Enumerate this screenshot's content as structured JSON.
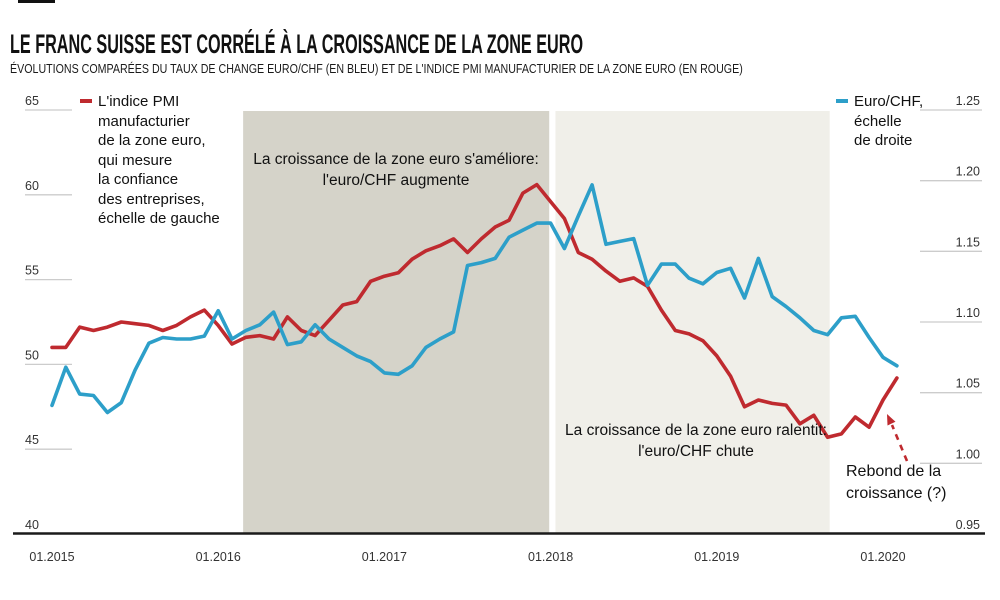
{
  "header": {
    "title": "LE FRANC SUISSE EST CORRÉLÉ À LA CROISSANCE DE LA ZONE EURO",
    "subtitle": "ÉVOLUTIONS COMPARÉES DU TAUX DE CHANGE EURO/CHF (EN BLEU) ET DE L'INDICE PMI MANUFACTURIER DE LA ZONE EURO (EN ROUGE)"
  },
  "legends": {
    "pmi": {
      "label": "L'indice PMI\nmanufacturier\nde la zone euro,\nqui mesure\nla confiance\ndes entreprises,\néchelle de gauche",
      "color": "#bf2a2f"
    },
    "eurchf": {
      "label": "Euro/CHF,\néchelle\nde droite",
      "color": "#2d9fc9"
    }
  },
  "annotations": {
    "improving": "La croissance de la zone euro s'améliore:\nl'euro/CHF augmente",
    "slowing": "La croissance de la zone euro ralentit:\nl'euro/CHF chute",
    "rebound": "Rebond de la\ncroissance (?)"
  },
  "chart_data": {
    "type": "line",
    "title": "Le franc suisse est corrélé à la croissance de la zone euro",
    "x": [
      "2015-01",
      "2015-02",
      "2015-03",
      "2015-04",
      "2015-05",
      "2015-06",
      "2015-07",
      "2015-08",
      "2015-09",
      "2015-10",
      "2015-11",
      "2015-12",
      "2016-01",
      "2016-02",
      "2016-03",
      "2016-04",
      "2016-05",
      "2016-06",
      "2016-07",
      "2016-08",
      "2016-09",
      "2016-10",
      "2016-11",
      "2016-12",
      "2017-01",
      "2017-02",
      "2017-03",
      "2017-04",
      "2017-05",
      "2017-06",
      "2017-07",
      "2017-08",
      "2017-09",
      "2017-10",
      "2017-11",
      "2017-12",
      "2018-01",
      "2018-02",
      "2018-03",
      "2018-04",
      "2018-05",
      "2018-06",
      "2018-07",
      "2018-08",
      "2018-09",
      "2018-10",
      "2018-11",
      "2018-12",
      "2019-01",
      "2019-02",
      "2019-03",
      "2019-04",
      "2019-05",
      "2019-06",
      "2019-07",
      "2019-08",
      "2019-09",
      "2019-10",
      "2019-11",
      "2019-12",
      "2020-01",
      "2020-02"
    ],
    "x_tick_labels": [
      {
        "month_index": 0,
        "label": "01.2015"
      },
      {
        "month_index": 12,
        "label": "01.2016"
      },
      {
        "month_index": 24,
        "label": "01.2017"
      },
      {
        "month_index": 36,
        "label": "01.2018"
      },
      {
        "month_index": 48,
        "label": "01.2019"
      },
      {
        "month_index": 60,
        "label": "01.2020"
      }
    ],
    "left_axis": {
      "label": "Indice PMI, échelle de gauche",
      "range": [
        40,
        65
      ],
      "ticks": [
        "65",
        "60",
        "55",
        "50",
        "45",
        "40"
      ],
      "tick_values": [
        65,
        60,
        55,
        50,
        45,
        40
      ]
    },
    "right_axis": {
      "label": "Euro/CHF, échelle de droite",
      "range": [
        0.95,
        1.25
      ],
      "ticks": [
        "1.25",
        "1.20",
        "1.15",
        "1.10",
        "1.05",
        "1.00",
        "0.95"
      ],
      "tick_values": [
        1.25,
        1.2,
        1.15,
        1.1,
        1.05,
        1.0,
        0.95
      ]
    },
    "series": [
      {
        "name": "Indice PMI manufacturier de la zone euro",
        "axis": "left",
        "color": "#bf2a2f",
        "values": [
          51.0,
          51.0,
          52.2,
          52.0,
          52.2,
          52.5,
          52.4,
          52.3,
          52.0,
          52.3,
          52.8,
          53.2,
          52.3,
          51.2,
          51.6,
          51.7,
          51.5,
          52.8,
          52.0,
          51.7,
          52.6,
          53.5,
          53.7,
          54.9,
          55.2,
          55.4,
          56.2,
          56.7,
          57.0,
          57.4,
          56.6,
          57.4,
          58.1,
          58.5,
          60.1,
          60.6,
          59.6,
          58.6,
          56.6,
          56.2,
          55.5,
          54.9,
          55.1,
          54.6,
          53.2,
          52.0,
          51.8,
          51.4,
          50.5,
          49.3,
          47.5,
          47.9,
          47.7,
          47.6,
          46.5,
          47.0,
          45.7,
          45.9,
          46.9,
          46.3,
          47.9,
          49.2
        ]
      },
      {
        "name": "Euro/CHF",
        "axis": "right",
        "color": "#2d9fc9",
        "values": [
          1.041,
          1.068,
          1.049,
          1.048,
          1.036,
          1.043,
          1.066,
          1.085,
          1.089,
          1.088,
          1.088,
          1.09,
          1.108,
          1.088,
          1.094,
          1.098,
          1.107,
          1.084,
          1.086,
          1.098,
          1.088,
          1.082,
          1.076,
          1.072,
          1.064,
          1.063,
          1.069,
          1.082,
          1.088,
          1.093,
          1.14,
          1.142,
          1.145,
          1.16,
          1.165,
          1.17,
          1.17,
          1.152,
          1.175,
          1.197,
          1.155,
          1.157,
          1.159,
          1.126,
          1.141,
          1.141,
          1.131,
          1.127,
          1.135,
          1.138,
          1.117,
          1.145,
          1.118,
          1.111,
          1.103,
          1.094,
          1.091,
          1.103,
          1.104,
          1.089,
          1.075,
          1.069
        ]
      }
    ],
    "shaded_periods": [
      {
        "label": "La croissance de la zone euro s'améliore: l'euro/CHF augmente",
        "from": "2016-03",
        "to": "2018-01",
        "from_month_index": 13.8,
        "to_month_index": 35.9,
        "color": "#d5d3c9"
      },
      {
        "label": "La croissance de la zone euro ralentit: l'euro/CHF chute",
        "from": "2018-01",
        "to": "2019-10",
        "from_month_index": 36.35,
        "to_month_index": 56.15,
        "color": "#f0efe9"
      }
    ],
    "grid": "short tick dashes only, no full gridlines",
    "legend_position": "top-left and top-right",
    "colors": {
      "pmi_red": "#bf2a2f",
      "eurchf_blue": "#2d9fc9",
      "axis_black": "#1a1a1a",
      "tick_gray": "#cccccc"
    }
  }
}
